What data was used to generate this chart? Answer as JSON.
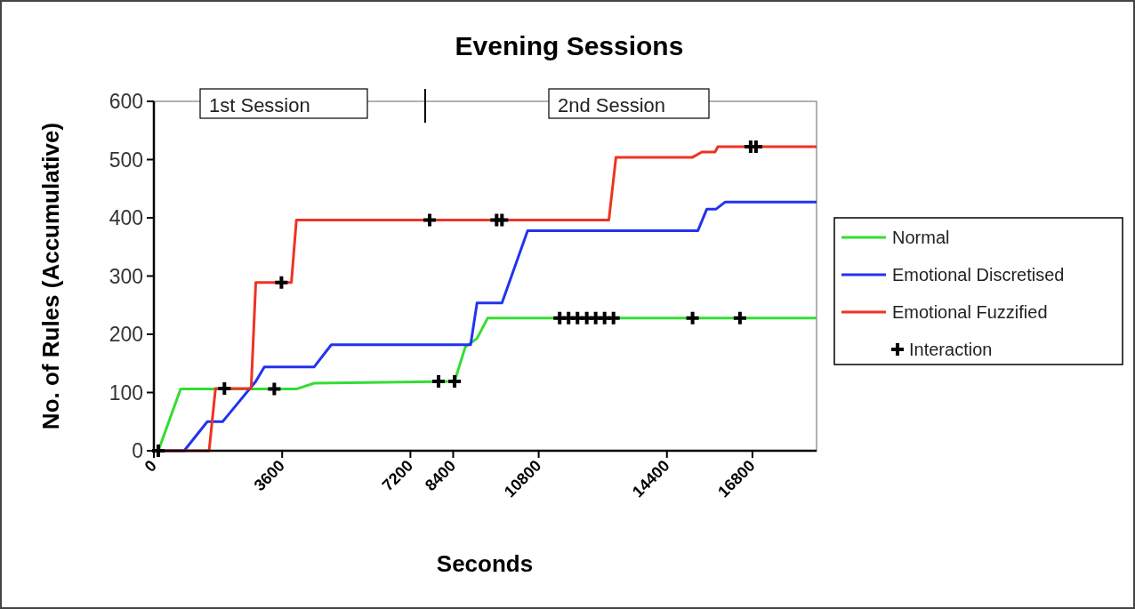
{
  "chart_data": {
    "type": "line",
    "title": "Evening Sessions",
    "xlabel": "Seconds",
    "ylabel": "No. of Rules (Accumulative)",
    "xlim": [
      0,
      18600
    ],
    "xticks": [
      0,
      3600,
      7200,
      8400,
      10800,
      14400,
      16800
    ],
    "ylim": [
      0,
      600
    ],
    "yticks": [
      0,
      100,
      200,
      300,
      400,
      500,
      600
    ],
    "grid": false,
    "legend": "right",
    "marker": "none",
    "line_style": "solid",
    "annotations": [
      "1st Session",
      "2nd Session"
    ],
    "series": [
      {
        "name": "Normal",
        "color": "#33dd33",
        "x": [
          125,
          750,
          4000,
          4500,
          8440,
          8740,
          9070,
          9370,
          18600
        ],
        "values": [
          0,
          106,
          106,
          116,
          119,
          178,
          193,
          228,
          228
        ]
      },
      {
        "name": "Emotional Discretised",
        "color": "#2233ee",
        "x": [
          0,
          850,
          1500,
          1930,
          2860,
          3100,
          4500,
          4980,
          8890,
          9070,
          9770,
          10490,
          15270,
          15520,
          15780,
          16030,
          18600
        ],
        "values": [
          0,
          0,
          50,
          50,
          119,
          144,
          144,
          182,
          182,
          254,
          254,
          378,
          378,
          415,
          415,
          427,
          427
        ]
      },
      {
        "name": "Emotional Fuzzified",
        "color": "#ee3322",
        "x": [
          0,
          1550,
          1730,
          2730,
          2860,
          3860,
          4000,
          12770,
          12970,
          15120,
          15380,
          15750,
          15830,
          18600
        ],
        "values": [
          0,
          0,
          107,
          107,
          289,
          289,
          396,
          396,
          504,
          504,
          513,
          513,
          522,
          522
        ]
      },
      {
        "name": "Interaction",
        "type": "scatter",
        "marker": "cross",
        "color": "#000000",
        "x": [
          125,
          1980,
          3380,
          3580,
          7740,
          7990,
          8440,
          9620,
          9770,
          11390,
          11640,
          11890,
          12150,
          12400,
          12650,
          12900,
          15120,
          16450,
          16750,
          16900
        ],
        "values": [
          0,
          107,
          106,
          289,
          396,
          119,
          119,
          396,
          396,
          228,
          228,
          228,
          228,
          228,
          228,
          228,
          228,
          228,
          522,
          522
        ]
      }
    ]
  }
}
